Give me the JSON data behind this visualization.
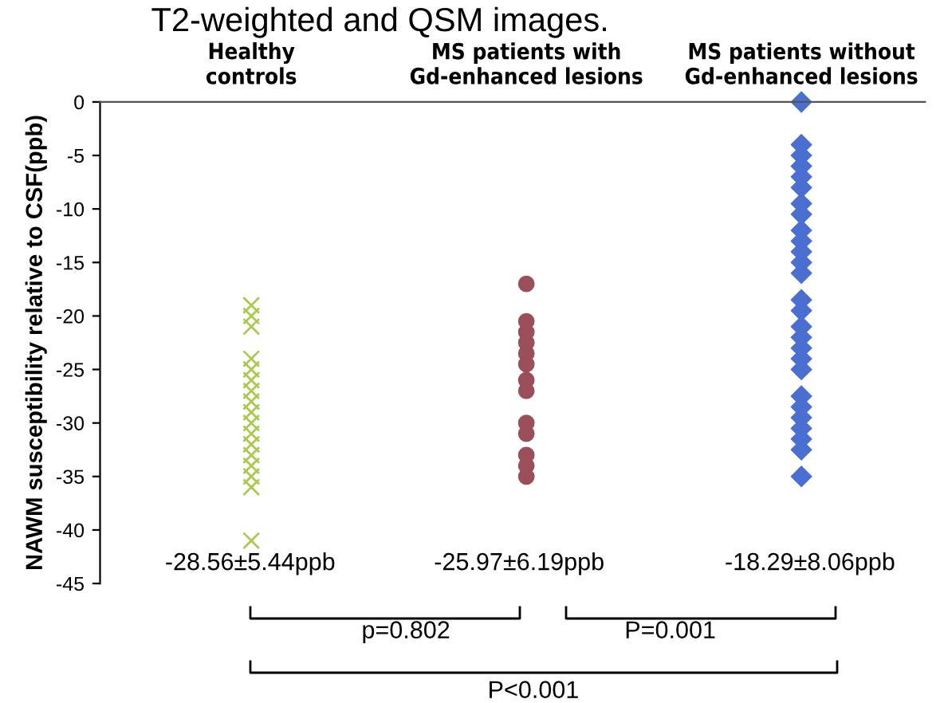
{
  "chart_data": {
    "type": "scatter",
    "categories": [
      "Healthy\ncontrols",
      "MS patients with\nGd-enhanced lesions",
      "MS patients without\nGd-enhanced lesions"
    ],
    "ylabel": "NAWM susceptibility relative to CSF(ppb)",
    "ylim": [
      -45,
      0
    ],
    "yticks": [
      0,
      -5,
      -10,
      -15,
      -20,
      -25,
      -30,
      -35,
      -40,
      -45
    ],
    "grid": false,
    "legend": false,
    "series": [
      {
        "color": "#a9c94f",
        "marker": "cross",
        "x": [
          "Healthy\ncontrols",
          "Healthy\ncontrols",
          "Healthy\ncontrols",
          "Healthy\ncontrols",
          "Healthy\ncontrols",
          "Healthy\ncontrols",
          "Healthy\ncontrols",
          "Healthy\ncontrols",
          "Healthy\ncontrols",
          "Healthy\ncontrols",
          "Healthy\ncontrols",
          "Healthy\ncontrols",
          "Healthy\ncontrols",
          "Healthy\ncontrols",
          "Healthy\ncontrols",
          "Healthy\ncontrols",
          "Healthy\ncontrols"
        ],
        "values": [
          -19,
          -20,
          -21,
          -24,
          -25,
          -26,
          -27,
          -28,
          -29,
          -30,
          -31,
          -32,
          -33,
          -34,
          -35,
          -36,
          -41
        ]
      },
      {
        "color": "#9b4f5a",
        "marker": "circle",
        "x": [
          "MS patients with\nGd-enhanced lesions",
          "MS patients with\nGd-enhanced lesions",
          "MS patients with\nGd-enhanced lesions",
          "MS patients with\nGd-enhanced lesions",
          "MS patients with\nGd-enhanced lesions",
          "MS patients with\nGd-enhanced lesions",
          "MS patients with\nGd-enhanced lesions",
          "MS patients with\nGd-enhanced lesions",
          "MS patients with\nGd-enhanced lesions",
          "MS patients with\nGd-enhanced lesions",
          "MS patients with\nGd-enhanced lesions",
          "MS patients with\nGd-enhanced lesions",
          "MS patients with\nGd-enhanced lesions"
        ],
        "values": [
          -17,
          -20.5,
          -21.5,
          -22.5,
          -23.5,
          -24.5,
          -26,
          -27,
          -30,
          -31,
          -33,
          -34,
          -35
        ]
      },
      {
        "color": "#4a6fd0",
        "marker": "diamond",
        "x": [
          "MS patients without\nGd-enhanced lesions",
          "MS patients without\nGd-enhanced lesions",
          "MS patients without\nGd-enhanced lesions",
          "MS patients without\nGd-enhanced lesions",
          "MS patients without\nGd-enhanced lesions",
          "MS patients without\nGd-enhanced lesions",
          "MS patients without\nGd-enhanced lesions",
          "MS patients without\nGd-enhanced lesions",
          "MS patients without\nGd-enhanced lesions",
          "MS patients without\nGd-enhanced lesions",
          "MS patients without\nGd-enhanced lesions",
          "MS patients without\nGd-enhanced lesions",
          "MS patients without\nGd-enhanced lesions",
          "MS patients without\nGd-enhanced lesions",
          "MS patients without\nGd-enhanced lesions",
          "MS patients without\nGd-enhanced lesions",
          "MS patients without\nGd-enhanced lesions",
          "MS patients without\nGd-enhanced lesions",
          "MS patients without\nGd-enhanced lesions",
          "MS patients without\nGd-enhanced lesions",
          "MS patients without\nGd-enhanced lesions",
          "MS patients without\nGd-enhanced lesions",
          "MS patients without\nGd-enhanced lesions",
          "MS patients without\nGd-enhanced lesions",
          "MS patients without\nGd-enhanced lesions",
          "MS patients without\nGd-enhanced lesions",
          "MS patients without\nGd-enhanced lesions"
        ],
        "values": [
          0,
          -4,
          -5,
          -6,
          -7,
          -8,
          -9.5,
          -10.5,
          -12,
          -13,
          -14,
          -15,
          -16,
          -18.5,
          -19.5,
          -21,
          -22,
          -23,
          -24,
          -25,
          -27.5,
          -28.5,
          -29.5,
          -30.5,
          -31.5,
          -32.5,
          -35
        ]
      }
    ],
    "annotations": [
      "T2-weighted and QSM images.",
      "-28.56±5.44ppb",
      "-25.97±6.19ppb",
      "-18.29±8.06ppb",
      "p=0.802",
      "P=0.001",
      "P<0.001"
    ]
  }
}
